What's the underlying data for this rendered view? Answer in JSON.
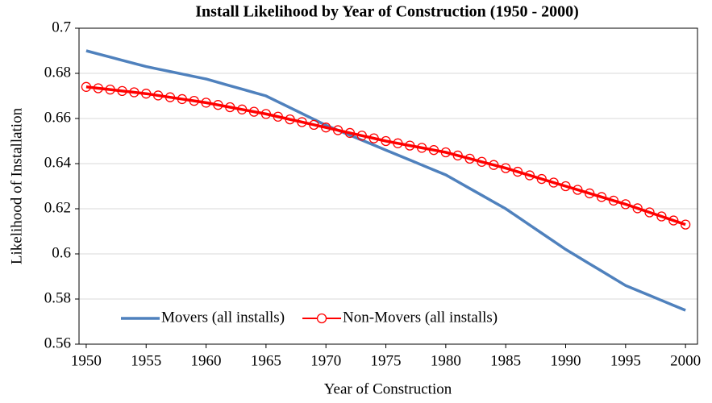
{
  "chart_data": {
    "type": "line",
    "title": "Install Likelihood by Year of Construction (1950 - 2000)",
    "x_label": "Year of Construction",
    "y_label": "Likelihood of Installation",
    "x": [
      1950,
      1951,
      1952,
      1953,
      1954,
      1955,
      1956,
      1957,
      1958,
      1959,
      1960,
      1961,
      1962,
      1963,
      1964,
      1965,
      1966,
      1967,
      1968,
      1969,
      1970,
      1971,
      1972,
      1973,
      1974,
      1975,
      1976,
      1977,
      1978,
      1979,
      1980,
      1981,
      1982,
      1983,
      1984,
      1985,
      1986,
      1987,
      1988,
      1989,
      1990,
      1991,
      1992,
      1993,
      1994,
      1995,
      1996,
      1997,
      1998,
      1999,
      2000
    ],
    "series": [
      {
        "name": "Movers (all installs)",
        "color": "#4f81bd",
        "marker": false,
        "values": [
          0.69,
          0.6886,
          0.6872,
          0.6858,
          0.6844,
          0.683,
          0.6819,
          0.6808,
          0.6797,
          0.6786,
          0.6775,
          0.676,
          0.6745,
          0.673,
          0.6715,
          0.67,
          0.6674,
          0.6648,
          0.6622,
          0.6596,
          0.657,
          0.6548,
          0.6526,
          0.6504,
          0.6482,
          0.646,
          0.6438,
          0.6416,
          0.6394,
          0.6372,
          0.635,
          0.632,
          0.629,
          0.626,
          0.623,
          0.62,
          0.6164,
          0.6128,
          0.6092,
          0.6056,
          0.602,
          0.5988,
          0.5956,
          0.5924,
          0.5892,
          0.586,
          0.5838,
          0.5816,
          0.5794,
          0.5772,
          0.575
        ]
      },
      {
        "name": "Non-Movers (all installs)",
        "color": "#ff0000",
        "marker": true,
        "values": [
          0.674,
          0.6734,
          0.6728,
          0.6722,
          0.6716,
          0.671,
          0.6702,
          0.6694,
          0.6686,
          0.6678,
          0.667,
          0.666,
          0.665,
          0.664,
          0.663,
          0.662,
          0.6608,
          0.6596,
          0.6584,
          0.6572,
          0.656,
          0.6548,
          0.6536,
          0.6524,
          0.6512,
          0.65,
          0.649,
          0.648,
          0.647,
          0.646,
          0.645,
          0.6436,
          0.6422,
          0.6408,
          0.6394,
          0.638,
          0.6364,
          0.6348,
          0.6332,
          0.6316,
          0.63,
          0.6284,
          0.6268,
          0.6252,
          0.6236,
          0.622,
          0.6202,
          0.6184,
          0.6166,
          0.6148,
          0.613
        ]
      }
    ],
    "xlim": [
      1949.4,
      2001
    ],
    "ylim": [
      0.56,
      0.7
    ],
    "xticks": [
      1950,
      1955,
      1960,
      1965,
      1970,
      1975,
      1980,
      1985,
      1990,
      1995,
      2000
    ],
    "yticks": [
      0.56,
      0.58,
      0.6,
      0.62,
      0.64,
      0.66,
      0.68,
      0.7
    ],
    "grid": true,
    "legend": "lower left"
  }
}
